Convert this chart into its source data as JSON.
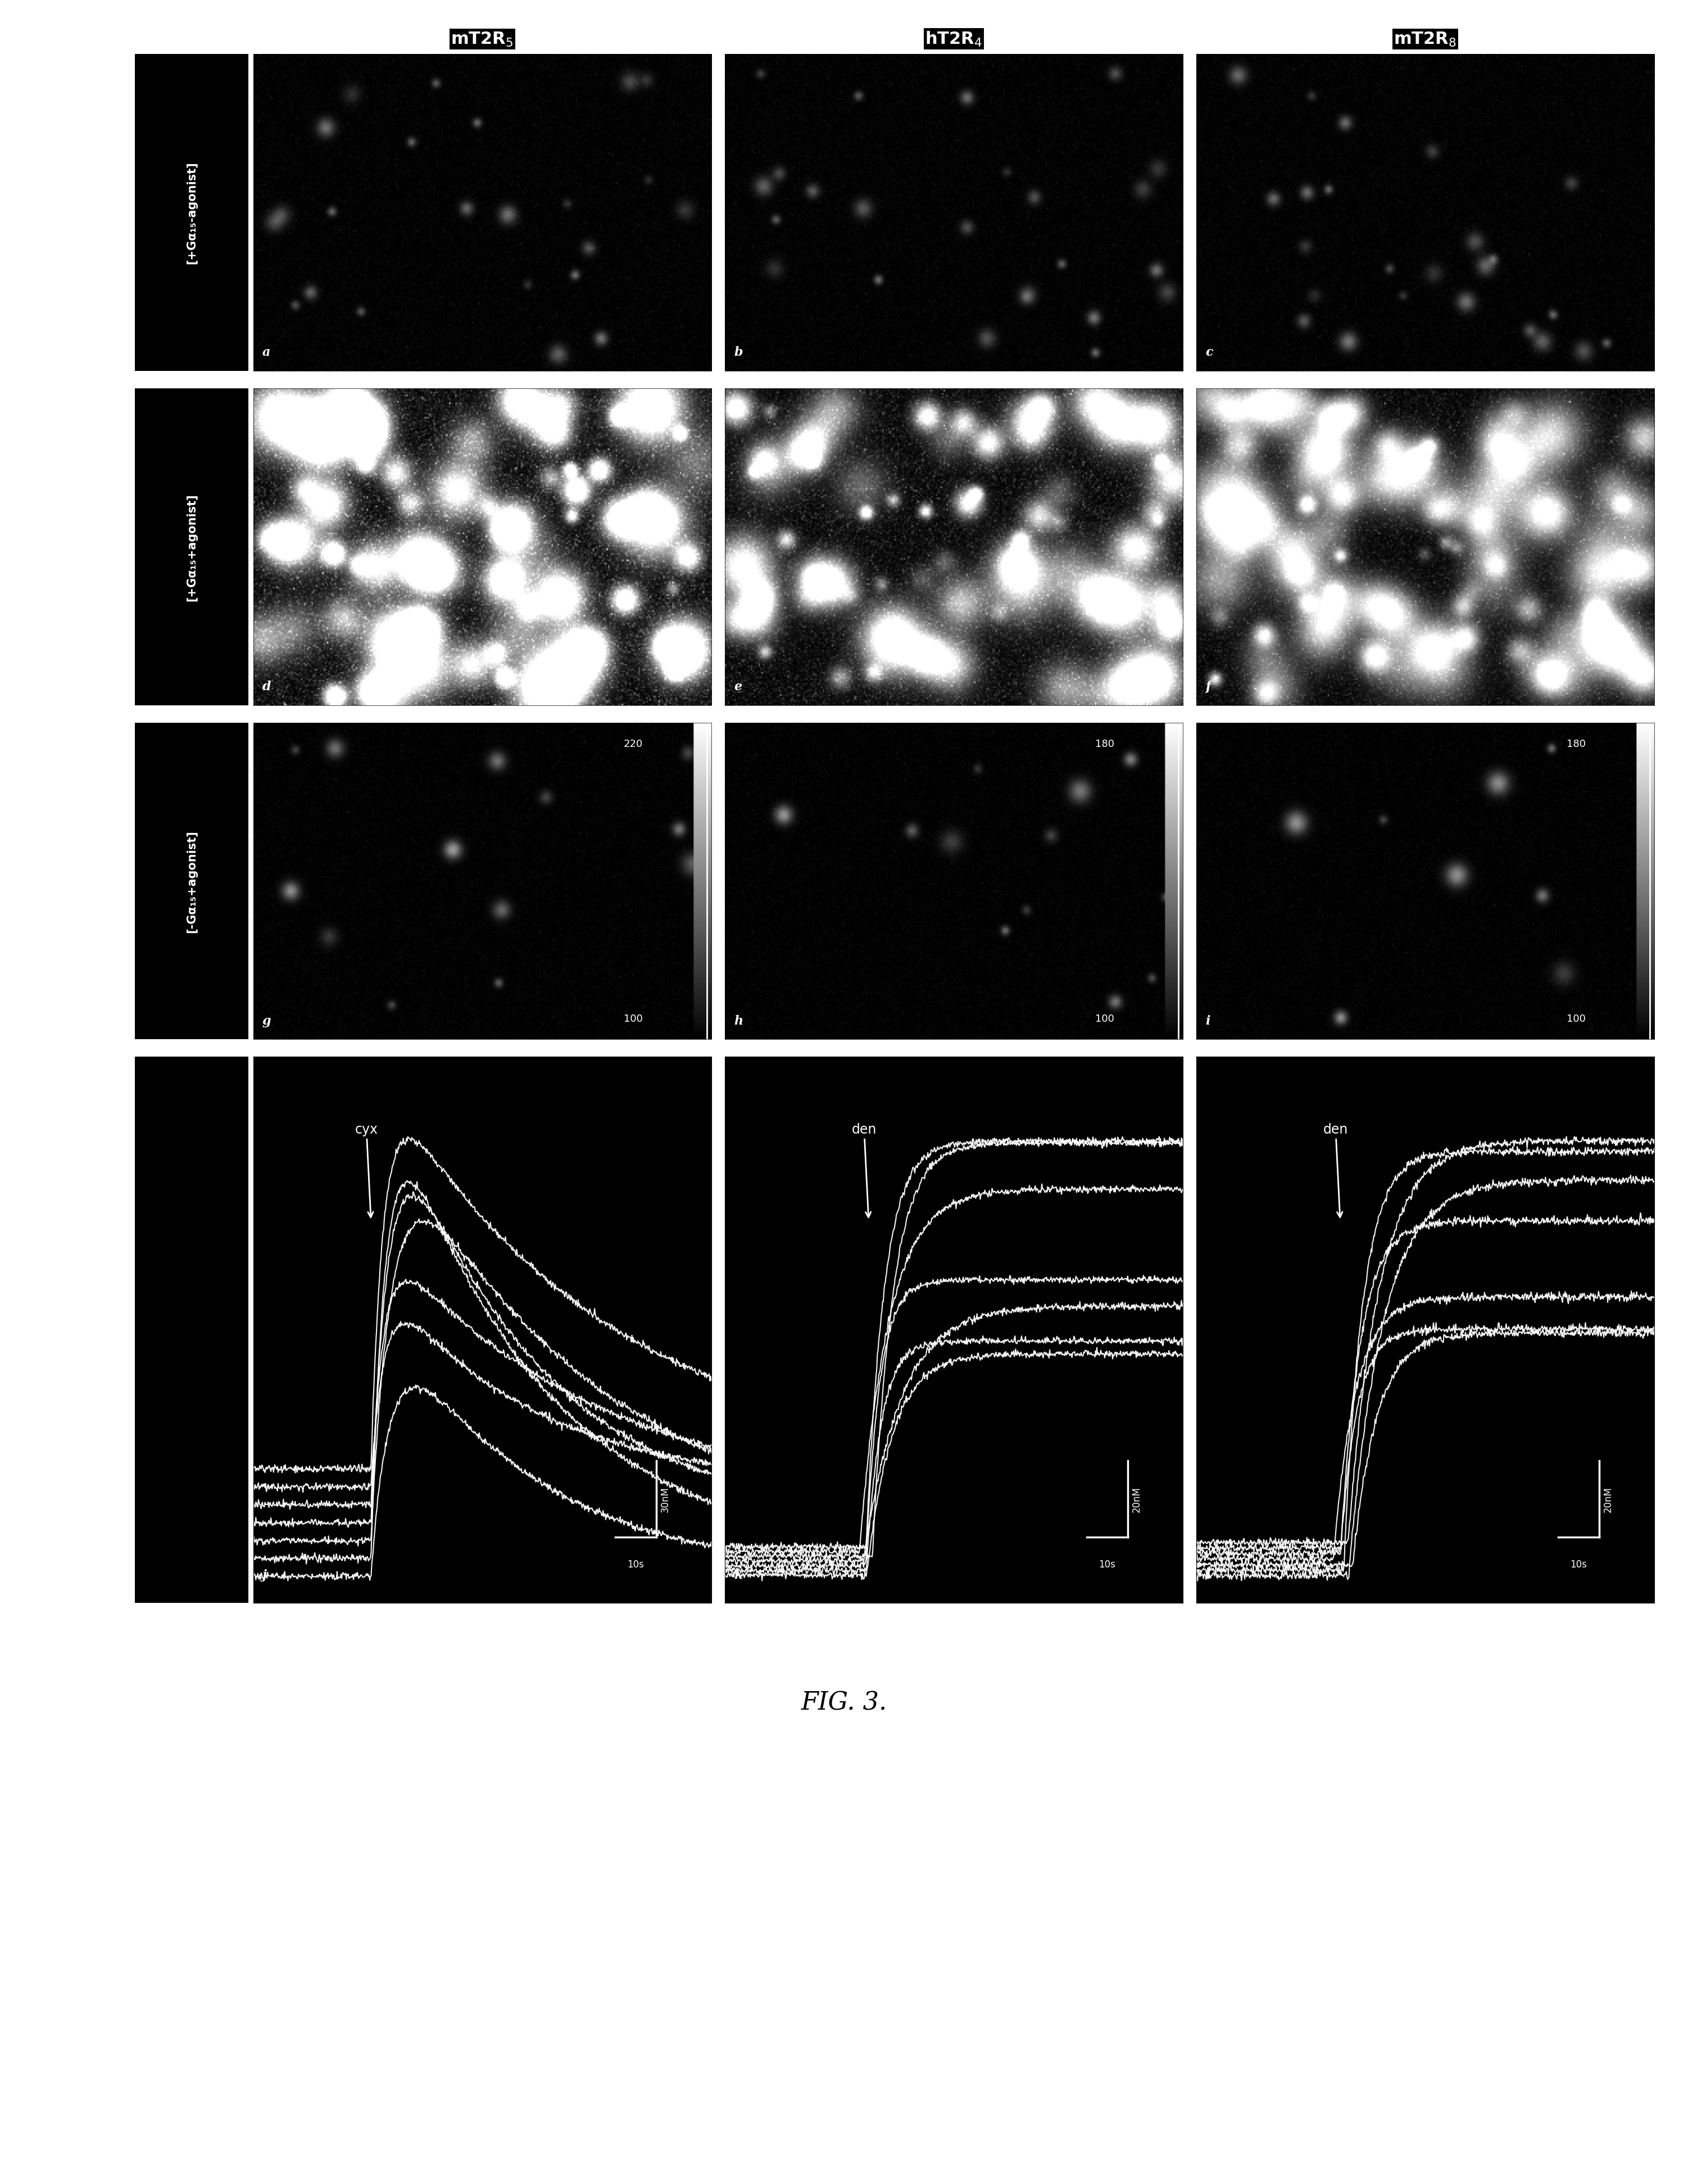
{
  "title": "FIG. 3.",
  "col_headers": [
    "mT2R5",
    "hT2R4",
    "mT2R8"
  ],
  "col_header_bases": [
    "mT2R",
    "hT2R",
    "mT2R"
  ],
  "col_header_subscripts": [
    "5",
    "4",
    "8"
  ],
  "row_labels": [
    "[+Gα₁₅-agonist]",
    "[+Gα₁₅+agonist]",
    "[-Gα₁₅+agonist]"
  ],
  "panel_letters": [
    [
      "a",
      "b",
      "c"
    ],
    [
      "d",
      "e",
      "f"
    ],
    [
      "g",
      "h",
      "i"
    ],
    [
      "j",
      "k",
      "l"
    ]
  ],
  "scale_bar_top": [
    "220",
    "180",
    "180"
  ],
  "scale_bar_bottom": [
    "100",
    "100",
    "100"
  ],
  "trace_labels": [
    "cyx",
    "den",
    "den"
  ],
  "trace_scale_y": [
    "30nM",
    "20nM",
    "20nM"
  ],
  "trace_scale_x": [
    "10s",
    "10s",
    "10s"
  ],
  "bg_black": "#000000",
  "bg_white": "#ffffff",
  "text_white": "#ffffff",
  "text_black": "#000000"
}
